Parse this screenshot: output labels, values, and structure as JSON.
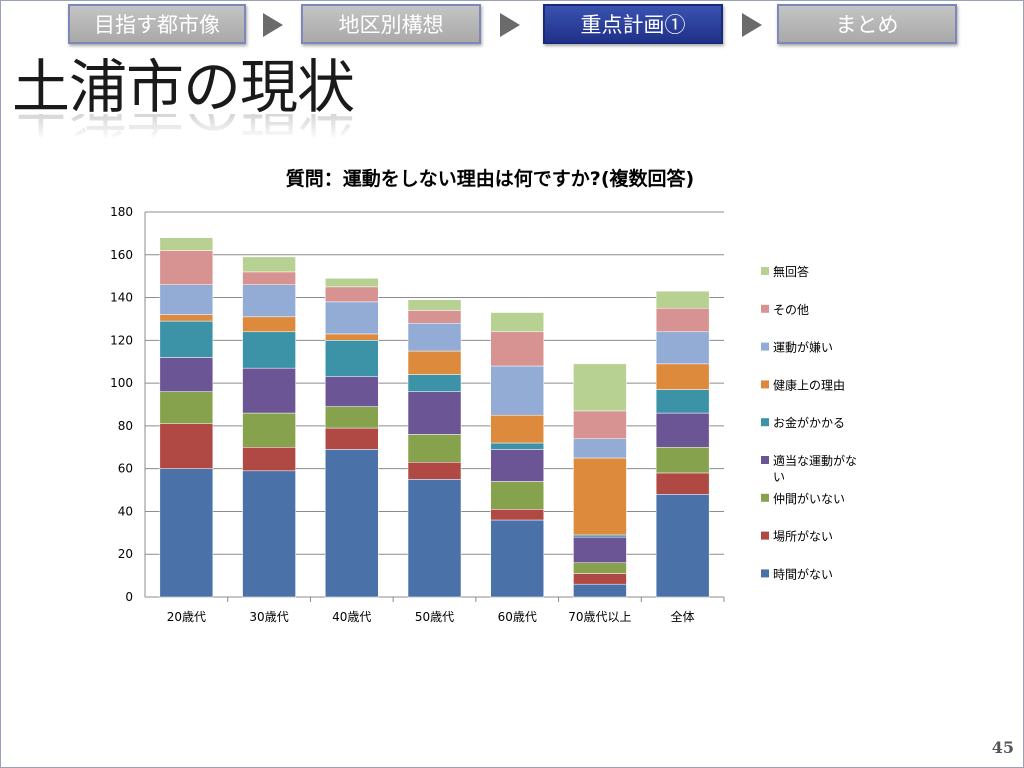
{
  "nav": {
    "steps": [
      {
        "label": "目指す都市像"
      },
      {
        "label": "地区別構想"
      },
      {
        "label": "重点計画①"
      },
      {
        "label": "まとめ"
      }
    ]
  },
  "slide": {
    "title": "土浦市の現状",
    "page_number": "45"
  },
  "colors": {
    "時間がない": "#4a72a8",
    "場所がない": "#b04844",
    "仲間がいない": "#86a24c",
    "適当な運動がない": "#6c5594",
    "お金がかかる": "#3c93a8",
    "健康上の理由": "#de8a3c",
    "運動が嫌い": "#93acd6",
    "その他": "#d69392",
    "無回答": "#b6d192"
  },
  "chart_data": {
    "type": "bar",
    "stacked": true,
    "title": "質問：運動をしない理由は何ですか?(複数回答)",
    "categories": [
      "20歳代",
      "30歳代",
      "40歳代",
      "50歳代",
      "60歳代",
      "70歳代以上",
      "全体"
    ],
    "ylim": [
      0,
      180
    ],
    "yticks": [
      0,
      20,
      40,
      60,
      80,
      100,
      120,
      140,
      160,
      180
    ],
    "grid": true,
    "legend_position": "right",
    "series": [
      {
        "name": "時間がない",
        "values": [
          60,
          59,
          69,
          55,
          36,
          6,
          48
        ]
      },
      {
        "name": "場所がない",
        "values": [
          21,
          11,
          10,
          8,
          5,
          5,
          10
        ]
      },
      {
        "name": "仲間がいない",
        "values": [
          15,
          16,
          10,
          13,
          13,
          5,
          12
        ]
      },
      {
        "name": "適当な運動がない",
        "values": [
          16,
          21,
          14,
          20,
          15,
          12,
          16
        ]
      },
      {
        "name": "お金がかかる",
        "values": [
          17,
          17,
          17,
          8,
          3,
          1,
          11
        ]
      },
      {
        "name": "健康上の理由",
        "values": [
          3,
          7,
          3,
          11,
          13,
          36,
          12
        ]
      },
      {
        "name": "運動が嫌い",
        "values": [
          14,
          15,
          15,
          13,
          23,
          9,
          15
        ]
      },
      {
        "name": "その他",
        "values": [
          16,
          6,
          7,
          6,
          16,
          13,
          11
        ]
      },
      {
        "name": "無回答",
        "values": [
          6,
          7,
          4,
          5,
          9,
          22,
          8
        ]
      }
    ]
  }
}
